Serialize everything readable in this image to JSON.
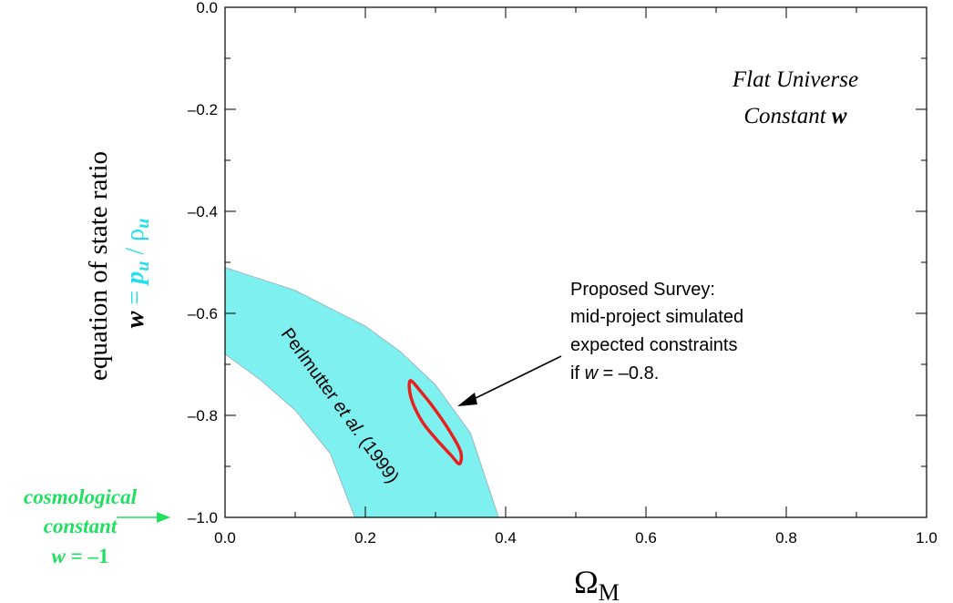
{
  "chart_data": {
    "type": "area",
    "xlim": [
      0.0,
      1.0
    ],
    "ylim": [
      -1.0,
      0.0
    ],
    "x_ticks": [
      "0.0",
      "0.2",
      "0.4",
      "0.6",
      "0.8",
      "1.0"
    ],
    "y_ticks": [
      "0.0",
      "–0.2",
      "–0.4",
      "–0.6",
      "–0.8",
      "–1.0"
    ],
    "x_tick_values": [
      0.0,
      0.2,
      0.4,
      0.6,
      0.8,
      1.0
    ],
    "y_tick_values": [
      0.0,
      -0.2,
      -0.4,
      -0.6,
      -0.8,
      -1.0
    ],
    "xlabel": "Ω",
    "xlabel_sub": "M",
    "ylabel_line1": "equation of state ratio",
    "ylabel_line2": {
      "w": "w",
      "eq": " = ",
      "p": "p",
      "p_sub": "u",
      "slash": " / ",
      "rho": "ρ",
      "rho_sub": "u"
    },
    "title_line1": "Flat Universe",
    "title_line2_prefix": "Constant ",
    "title_line2_var": "w",
    "band": {
      "label_prefix": "Perlmutter ",
      "label_italic": "et al.",
      "label_suffix": " (1999)",
      "color": "#7ff0f0",
      "upper_edge": [
        [
          0.0,
          -0.51
        ],
        [
          0.1,
          -0.555
        ],
        [
          0.2,
          -0.625
        ],
        [
          0.25,
          -0.675
        ],
        [
          0.3,
          -0.74
        ],
        [
          0.35,
          -0.835
        ],
        [
          0.39,
          -1.0
        ]
      ],
      "lower_edge": [
        [
          0.0,
          -0.68
        ],
        [
          0.05,
          -0.73
        ],
        [
          0.1,
          -0.79
        ],
        [
          0.15,
          -0.875
        ],
        [
          0.185,
          -1.0
        ]
      ]
    },
    "ellipse": {
      "color": "#e8201c",
      "center_x": 0.299,
      "center_y": -0.816,
      "points": [
        [
          0.264,
          -0.732
        ],
        [
          0.28,
          -0.755
        ],
        [
          0.3,
          -0.79
        ],
        [
          0.322,
          -0.835
        ],
        [
          0.336,
          -0.872
        ],
        [
          0.334,
          -0.895
        ],
        [
          0.322,
          -0.878
        ],
        [
          0.3,
          -0.845
        ],
        [
          0.28,
          -0.81
        ],
        [
          0.265,
          -0.765
        ]
      ]
    },
    "annotation": {
      "lines": [
        "Proposed Survey:",
        "mid-project simulated",
        "expected constraints"
      ],
      "last_prefix": "if ",
      "last_var": "w",
      "last_suffix": " = –0.8."
    },
    "cosmo_label": {
      "line1": "cosmological",
      "line2": "constant",
      "line3_var": "w",
      "line3_suffix": " = –1",
      "color": "#20e060"
    },
    "ylabel_color": "#20e0f0"
  }
}
